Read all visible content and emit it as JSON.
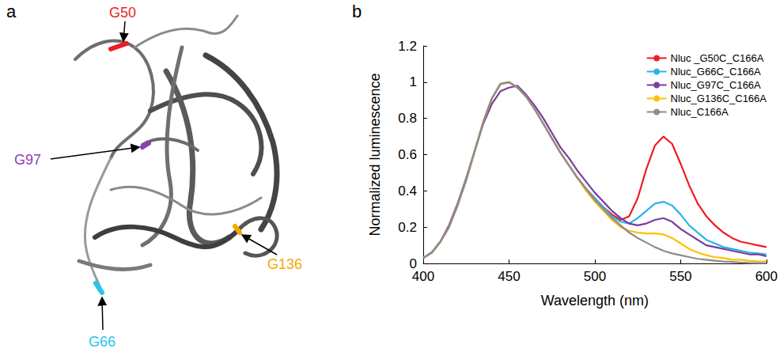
{
  "figure": {
    "letters": [
      "a",
      "b"
    ],
    "residues": [
      {
        "label": "G50",
        "color": "#ee1c25"
      },
      {
        "label": "G97",
        "color": "#8a3fb5"
      },
      {
        "label": "G66",
        "color": "#29c4ee"
      },
      {
        "label": "G136",
        "color": "#f5a800"
      }
    ]
  },
  "chart_data": {
    "type": "line",
    "x_label": "Wavelength (nm)",
    "y_label": "Normalized luminescence",
    "x": [
      400,
      405,
      410,
      415,
      420,
      425,
      430,
      435,
      440,
      445,
      450,
      455,
      460,
      465,
      470,
      475,
      480,
      485,
      490,
      495,
      500,
      505,
      510,
      515,
      520,
      525,
      530,
      535,
      540,
      545,
      550,
      555,
      560,
      565,
      570,
      575,
      580,
      585,
      590,
      595,
      600
    ],
    "series": [
      {
        "name": "Nluc _G50C_C166A",
        "color": "#ee1c25",
        "values": [
          0.03,
          0.06,
          0.12,
          0.2,
          0.32,
          0.46,
          0.62,
          0.78,
          0.91,
          0.99,
          1.0,
          0.97,
          0.92,
          0.85,
          0.77,
          0.69,
          0.61,
          0.54,
          0.47,
          0.41,
          0.36,
          0.31,
          0.27,
          0.24,
          0.26,
          0.36,
          0.52,
          0.65,
          0.7,
          0.66,
          0.55,
          0.43,
          0.33,
          0.26,
          0.21,
          0.17,
          0.14,
          0.12,
          0.11,
          0.1,
          0.09
        ]
      },
      {
        "name": "Nluc_G66C_C166A",
        "color": "#29b5e8",
        "values": [
          0.03,
          0.06,
          0.12,
          0.2,
          0.32,
          0.46,
          0.62,
          0.78,
          0.91,
          0.99,
          1.0,
          0.97,
          0.92,
          0.85,
          0.77,
          0.69,
          0.61,
          0.54,
          0.47,
          0.41,
          0.36,
          0.31,
          0.26,
          0.23,
          0.22,
          0.25,
          0.29,
          0.33,
          0.34,
          0.32,
          0.27,
          0.21,
          0.17,
          0.13,
          0.11,
          0.09,
          0.08,
          0.07,
          0.06,
          0.055,
          0.05
        ]
      },
      {
        "name": "Nluc_G97C_C166A",
        "color": "#7a3da0",
        "values": [
          0.03,
          0.06,
          0.12,
          0.21,
          0.33,
          0.47,
          0.62,
          0.77,
          0.88,
          0.95,
          0.97,
          0.98,
          0.93,
          0.87,
          0.8,
          0.72,
          0.64,
          0.58,
          0.51,
          0.45,
          0.39,
          0.34,
          0.29,
          0.25,
          0.22,
          0.21,
          0.22,
          0.24,
          0.25,
          0.23,
          0.19,
          0.16,
          0.13,
          0.1,
          0.09,
          0.08,
          0.07,
          0.06,
          0.05,
          0.05,
          0.04
        ]
      },
      {
        "name": "Nluc_G136C_C166A",
        "color": "#ffc000",
        "values": [
          0.03,
          0.06,
          0.12,
          0.2,
          0.32,
          0.46,
          0.62,
          0.78,
          0.91,
          0.99,
          1.0,
          0.97,
          0.92,
          0.85,
          0.77,
          0.69,
          0.61,
          0.54,
          0.47,
          0.4,
          0.34,
          0.29,
          0.24,
          0.2,
          0.18,
          0.17,
          0.165,
          0.165,
          0.16,
          0.14,
          0.11,
          0.08,
          0.06,
          0.045,
          0.035,
          0.03,
          0.02,
          0.02,
          0.015,
          0.012,
          0.01
        ]
      },
      {
        "name": "Nluc_C166A",
        "color": "#8c8c8c",
        "values": [
          0.03,
          0.06,
          0.12,
          0.2,
          0.32,
          0.46,
          0.62,
          0.78,
          0.91,
          0.99,
          1.0,
          0.97,
          0.92,
          0.85,
          0.77,
          0.69,
          0.61,
          0.54,
          0.47,
          0.41,
          0.35,
          0.3,
          0.25,
          0.21,
          0.17,
          0.14,
          0.115,
          0.09,
          0.07,
          0.055,
          0.045,
          0.035,
          0.025,
          0.02,
          0.015,
          0.01,
          0.008,
          0.005,
          0.003,
          0.002,
          0.001
        ]
      }
    ],
    "xlim": [
      400,
      600
    ],
    "xticks": [
      400,
      450,
      500,
      550,
      600
    ],
    "ylim": [
      0,
      1.2
    ],
    "yticks": [
      0,
      0.2,
      0.4,
      0.6,
      0.8,
      1,
      1.2
    ],
    "grid": false,
    "legend": "upper right",
    "marker": "none",
    "line_style": "solid"
  }
}
